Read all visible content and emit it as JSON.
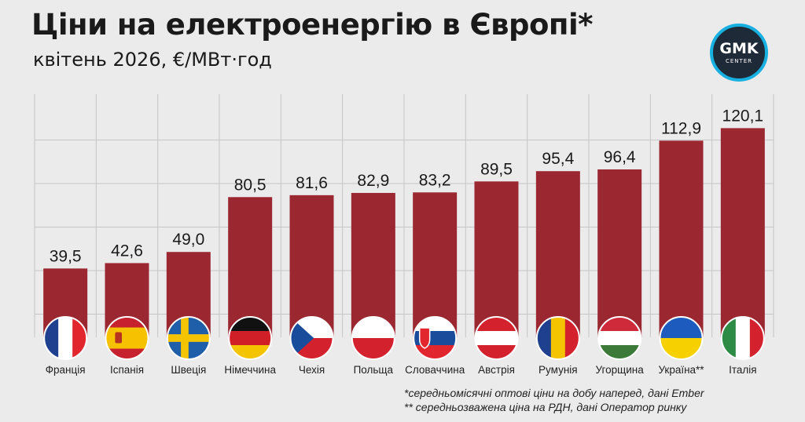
{
  "header": {
    "title": "Ціни на електроенергію в Європі*",
    "subtitle": "квітень 2026, €/МВт·год"
  },
  "logo": {
    "main": "GMK",
    "sub": "CENTER"
  },
  "footnotes": {
    "note1": "*середньомісячні оптові ціни на добу наперед, дані Ember",
    "note2": "** середньозважена ціна на РДН, дані Оператор ринку"
  },
  "colors": {
    "bar": "#9b2731",
    "grid": "#c6c6c6",
    "background": "#ebebeb",
    "accent": "#18b0e0"
  },
  "chart_data": {
    "type": "bar",
    "categories": [
      "Франція",
      "Іспанія",
      "Швеція",
      "Німеччина",
      "Чехія",
      "Польща",
      "Словаччина",
      "Австрія",
      "Румунія",
      "Угорщина",
      "Україна**",
      "Італія"
    ],
    "values": [
      39.5,
      42.6,
      49.0,
      80.5,
      81.6,
      82.9,
      83.2,
      89.5,
      95.4,
      96.4,
      112.9,
      120.1
    ],
    "value_labels": [
      "39,5",
      "42,6",
      "49,0",
      "80,5",
      "81,6",
      "82,9",
      "83,2",
      "89,5",
      "95,4",
      "96,4",
      "112,9",
      "120,1"
    ],
    "flags": [
      "france-flag",
      "spain-flag",
      "sweden-flag",
      "germany-flag",
      "czechia-flag",
      "poland-flag",
      "slovakia-flag",
      "austria-flag",
      "romania-flag",
      "hungary-flag",
      "ukraine-flag",
      "italy-flag"
    ],
    "title": "Ціни на електроенергію в Європі*",
    "xlabel": "",
    "ylabel": "",
    "ylim": [
      0,
      125
    ],
    "grid": true,
    "legend": "none"
  }
}
